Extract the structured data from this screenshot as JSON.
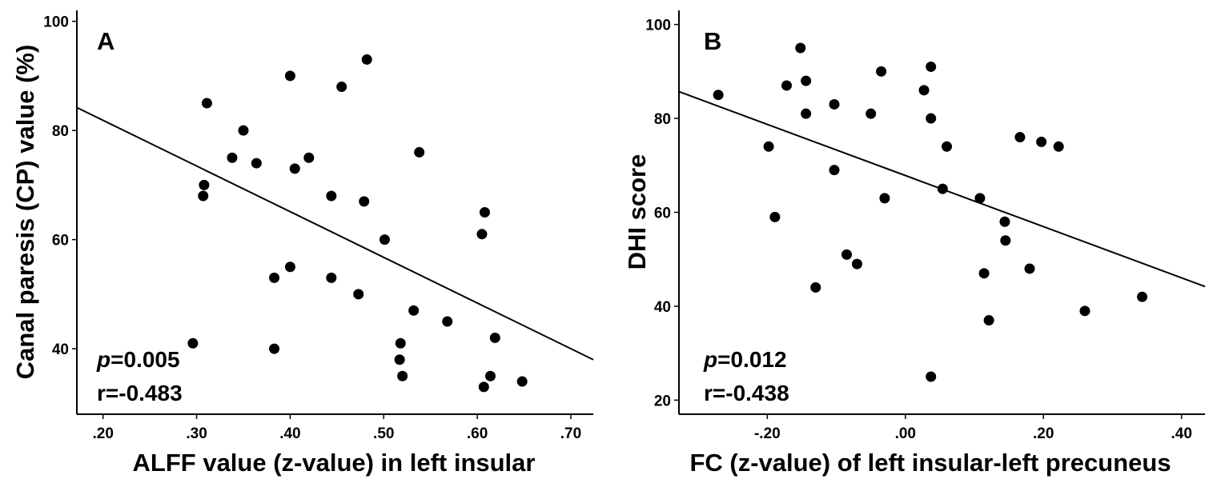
{
  "chart_data": [
    {
      "type": "scatter",
      "panel": "A",
      "xlabel": "ALFF value (z-value) in left insular",
      "ylabel": "Canal paresis (CP) value (%)",
      "xlim": [
        0.172,
        0.724
      ],
      "ylim": [
        28,
        102
      ],
      "xticks": [
        0.2,
        0.3,
        0.4,
        0.5,
        0.6,
        0.7
      ],
      "xtick_labels": [
        ".20",
        ".30",
        ".40",
        ".50",
        ".60",
        ".70"
      ],
      "yticks": [
        40,
        60,
        80,
        100
      ],
      "ytick_labels": [
        "40",
        "60",
        "80",
        "100"
      ],
      "stat_p_label": "p",
      "stat_p_value": "=0.005",
      "stat_r": "r=-0.483",
      "fit_line": {
        "x": [
          0.172,
          0.724
        ],
        "y": [
          84.2,
          38.0
        ]
      },
      "points": [
        {
          "x": 0.296,
          "y": 41
        },
        {
          "x": 0.308,
          "y": 70
        },
        {
          "x": 0.307,
          "y": 68
        },
        {
          "x": 0.311,
          "y": 85
        },
        {
          "x": 0.338,
          "y": 75
        },
        {
          "x": 0.35,
          "y": 80
        },
        {
          "x": 0.364,
          "y": 74
        },
        {
          "x": 0.383,
          "y": 53
        },
        {
          "x": 0.383,
          "y": 40
        },
        {
          "x": 0.4,
          "y": 90
        },
        {
          "x": 0.4,
          "y": 55
        },
        {
          "x": 0.405,
          "y": 73
        },
        {
          "x": 0.42,
          "y": 75
        },
        {
          "x": 0.444,
          "y": 68
        },
        {
          "x": 0.444,
          "y": 53
        },
        {
          "x": 0.455,
          "y": 88
        },
        {
          "x": 0.473,
          "y": 50
        },
        {
          "x": 0.479,
          "y": 67
        },
        {
          "x": 0.482,
          "y": 93
        },
        {
          "x": 0.501,
          "y": 60
        },
        {
          "x": 0.518,
          "y": 41
        },
        {
          "x": 0.517,
          "y": 38
        },
        {
          "x": 0.52,
          "y": 35
        },
        {
          "x": 0.532,
          "y": 47
        },
        {
          "x": 0.538,
          "y": 76
        },
        {
          "x": 0.568,
          "y": 45
        },
        {
          "x": 0.605,
          "y": 61
        },
        {
          "x": 0.608,
          "y": 65
        },
        {
          "x": 0.607,
          "y": 33
        },
        {
          "x": 0.614,
          "y": 35
        },
        {
          "x": 0.619,
          "y": 42
        },
        {
          "x": 0.648,
          "y": 34
        }
      ]
    },
    {
      "type": "scatter",
      "panel": "B",
      "xlabel": "FC (z-value) of left insular-left precuneus",
      "ylabel": "DHI score",
      "xlim": [
        -0.328,
        0.434
      ],
      "ylim": [
        17,
        103
      ],
      "xticks": [
        -0.2,
        0.0,
        0.2,
        0.4
      ],
      "xtick_labels": [
        "-.20",
        ".00",
        ".20",
        ".40"
      ],
      "yticks": [
        20,
        40,
        60,
        80,
        100
      ],
      "ytick_labels": [
        "20",
        "40",
        "60",
        "80",
        "100"
      ],
      "stat_p_label": "p",
      "stat_p_value": "=0.012",
      "stat_r": "r=-0.438",
      "fit_line": {
        "x": [
          -0.328,
          0.434
        ],
        "y": [
          85.7,
          44.2
        ]
      },
      "points": [
        {
          "x": -0.271,
          "y": 85
        },
        {
          "x": -0.198,
          "y": 74
        },
        {
          "x": -0.189,
          "y": 59
        },
        {
          "x": -0.172,
          "y": 87
        },
        {
          "x": -0.152,
          "y": 95
        },
        {
          "x": -0.144,
          "y": 88
        },
        {
          "x": -0.144,
          "y": 81
        },
        {
          "x": -0.13,
          "y": 44
        },
        {
          "x": -0.103,
          "y": 83
        },
        {
          "x": -0.103,
          "y": 69
        },
        {
          "x": -0.085,
          "y": 51
        },
        {
          "x": -0.07,
          "y": 49
        },
        {
          "x": -0.05,
          "y": 81
        },
        {
          "x": -0.035,
          "y": 90
        },
        {
          "x": -0.03,
          "y": 63
        },
        {
          "x": 0.027,
          "y": 86
        },
        {
          "x": 0.037,
          "y": 91
        },
        {
          "x": 0.037,
          "y": 80
        },
        {
          "x": 0.037,
          "y": 25
        },
        {
          "x": 0.054,
          "y": 65
        },
        {
          "x": 0.06,
          "y": 74
        },
        {
          "x": 0.108,
          "y": 63
        },
        {
          "x": 0.114,
          "y": 47
        },
        {
          "x": 0.121,
          "y": 37
        },
        {
          "x": 0.144,
          "y": 58
        },
        {
          "x": 0.145,
          "y": 54
        },
        {
          "x": 0.166,
          "y": 76
        },
        {
          "x": 0.18,
          "y": 48
        },
        {
          "x": 0.197,
          "y": 75
        },
        {
          "x": 0.222,
          "y": 74
        },
        {
          "x": 0.26,
          "y": 39
        },
        {
          "x": 0.343,
          "y": 42
        }
      ]
    }
  ]
}
